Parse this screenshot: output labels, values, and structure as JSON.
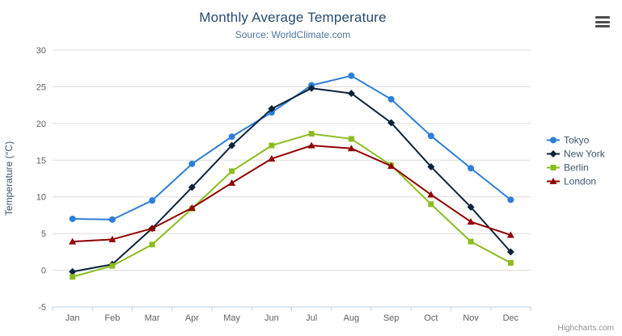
{
  "chart": {
    "title": "Monthly Average Temperature",
    "subtitle": "Source: WorldClimate.com",
    "credit": "Highcharts.com"
  },
  "icons": {
    "context_menu": "hamburger-menu-icon"
  },
  "colors": {
    "title": "#274b6d",
    "subtitle": "#4d759e",
    "axis_label": "#606060",
    "grid": "#dcdcdc",
    "axis_line": "#c0d0e0",
    "legend_text": "#3E576F"
  },
  "chart_data": {
    "type": "line",
    "title": "Monthly Average Temperature",
    "subtitle": "Source: WorldClimate.com",
    "categories": [
      "Jan",
      "Feb",
      "Mar",
      "Apr",
      "May",
      "Jun",
      "Jul",
      "Aug",
      "Sep",
      "Oct",
      "Nov",
      "Dec"
    ],
    "series": [
      {
        "name": "Tokyo",
        "color": "#2f7ed8",
        "marker": "circle",
        "values": [
          7.0,
          6.9,
          9.5,
          14.5,
          18.2,
          21.5,
          25.2,
          26.5,
          23.3,
          18.3,
          13.9,
          9.6
        ]
      },
      {
        "name": "New York",
        "color": "#0d233a",
        "marker": "diamond",
        "values": [
          -0.2,
          0.8,
          5.7,
          11.3,
          17.0,
          22.0,
          24.8,
          24.1,
          20.1,
          14.1,
          8.6,
          2.5
        ]
      },
      {
        "name": "Berlin",
        "color": "#8bbc21",
        "marker": "square",
        "values": [
          -0.9,
          0.6,
          3.5,
          8.4,
          13.5,
          17.0,
          18.6,
          17.9,
          14.3,
          9.0,
          3.9,
          1.0
        ]
      },
      {
        "name": "London",
        "color": "#910000",
        "marker": "triangle",
        "values": [
          3.9,
          4.2,
          5.7,
          8.5,
          11.9,
          15.2,
          17.0,
          16.6,
          14.2,
          10.3,
          6.6,
          4.8
        ]
      }
    ],
    "xlabel": "",
    "ylabel": "Temperature (°C)",
    "ylim": [
      -5,
      30
    ],
    "yticks": [
      -5,
      0,
      5,
      10,
      15,
      20,
      25,
      30
    ],
    "grid": true,
    "legend_position": "right"
  }
}
